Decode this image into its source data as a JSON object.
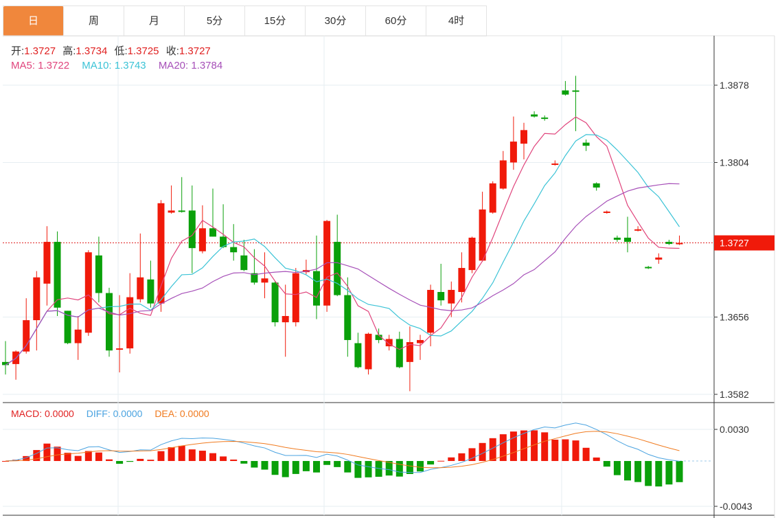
{
  "tabs": [
    "日",
    "周",
    "月",
    "5分",
    "15分",
    "30分",
    "60分",
    "4时"
  ],
  "active_tab": 0,
  "ohlc": {
    "open_label": "开:",
    "open": "1.3727",
    "high_label": "高:",
    "high": "1.3734",
    "low_label": "低:",
    "low": "1.3725",
    "close_label": "收:",
    "close": "1.3727"
  },
  "ma": {
    "ma5": "MA5: 1.3722",
    "ma10": "MA10: 1.3743",
    "ma20": "MA20: 1.3784"
  },
  "macd": {
    "macd": "MACD: 0.0000",
    "diff": "DIFF: 0.0000",
    "dea": "DEA: 0.0000"
  },
  "colors": {
    "up": "#f01a0a",
    "down": "#0aa00a",
    "ma5": "#e0447c",
    "ma10": "#3bc3d6",
    "ma20": "#a64fb8",
    "diff": "#4aa3e0",
    "dea": "#f07a1e",
    "accent": "#f0873c"
  },
  "chart_data": {
    "type": "candlestick",
    "price_axis": {
      "ticks": [
        "1.3878",
        "1.3804",
        "1.3656",
        "1.3582"
      ],
      "range": [
        1.3582,
        1.3878
      ]
    },
    "current_price": "1.3727",
    "macd_axis": {
      "ticks": [
        "0.0030",
        "-0.0043"
      ],
      "range": [
        -0.0043,
        0.003
      ]
    },
    "candles": [
      [
        1.3613,
        1.361,
        1.3633,
        1.3601
      ],
      [
        1.3611,
        1.3623,
        1.3624,
        1.3596
      ],
      [
        1.3623,
        1.3653,
        1.3674,
        1.3621
      ],
      [
        1.3653,
        1.3694,
        1.37,
        1.3624
      ],
      [
        1.3688,
        1.3728,
        1.3743,
        1.3667
      ],
      [
        1.3728,
        1.3665,
        1.3738,
        1.3657
      ],
      [
        1.3662,
        1.3631,
        1.3662,
        1.363
      ],
      [
        1.3631,
        1.3644,
        1.3657,
        1.3615
      ],
      [
        1.3641,
        1.3718,
        1.372,
        1.3638
      ],
      [
        1.3715,
        1.3679,
        1.3733,
        1.367
      ],
      [
        1.3679,
        1.3624,
        1.3684,
        1.3618
      ],
      [
        1.3625,
        1.3626,
        1.3677,
        1.3603
      ],
      [
        1.3626,
        1.3675,
        1.3698,
        1.3621
      ],
      [
        1.3673,
        1.3694,
        1.3736,
        1.367
      ],
      [
        1.3692,
        1.3669,
        1.371,
        1.3665
      ],
      [
        1.3669,
        1.3765,
        1.3768,
        1.3661
      ],
      [
        1.3756,
        1.3758,
        1.3782,
        1.3755
      ],
      [
        1.3758,
        1.3757,
        1.379,
        1.3756
      ],
      [
        1.3758,
        1.3722,
        1.3782,
        1.3698
      ],
      [
        1.3719,
        1.3741,
        1.3763,
        1.3717
      ],
      [
        1.3741,
        1.3733,
        1.3779,
        1.3733
      ],
      [
        1.3733,
        1.3723,
        1.3764,
        1.3722
      ],
      [
        1.3723,
        1.3718,
        1.3745,
        1.371
      ],
      [
        1.3715,
        1.3701,
        1.373,
        1.37
      ],
      [
        1.3698,
        1.3689,
        1.3721,
        1.3687
      ],
      [
        1.3689,
        1.3693,
        1.3718,
        1.3674
      ],
      [
        1.3689,
        1.3651,
        1.369,
        1.3647
      ],
      [
        1.3651,
        1.3657,
        1.3687,
        1.3618
      ],
      [
        1.3651,
        1.3698,
        1.3703,
        1.3647
      ],
      [
        1.3699,
        1.3701,
        1.3711,
        1.3697
      ],
      [
        1.37,
        1.3667,
        1.3734,
        1.3654
      ],
      [
        1.3667,
        1.3748,
        1.3749,
        1.3661
      ],
      [
        1.3728,
        1.3677,
        1.3754,
        1.3676
      ],
      [
        1.3677,
        1.3634,
        1.3694,
        1.3618
      ],
      [
        1.3631,
        1.3608,
        1.3641,
        1.3607
      ],
      [
        1.3606,
        1.364,
        1.3641,
        1.3601
      ],
      [
        1.3639,
        1.3634,
        1.3645,
        1.3631
      ],
      [
        1.3628,
        1.3635,
        1.3639,
        1.3624
      ],
      [
        1.3635,
        1.3608,
        1.3642,
        1.3607
      ],
      [
        1.3613,
        1.3632,
        1.3647,
        1.3585
      ],
      [
        1.3631,
        1.3634,
        1.3639,
        1.3615
      ],
      [
        1.3641,
        1.3682,
        1.3687,
        1.3628
      ],
      [
        1.368,
        1.3672,
        1.3707,
        1.3667
      ],
      [
        1.3669,
        1.3682,
        1.369,
        1.3656
      ],
      [
        1.368,
        1.3703,
        1.3718,
        1.367
      ],
      [
        1.3701,
        1.3732,
        1.3733,
        1.3698
      ],
      [
        1.371,
        1.3759,
        1.3776,
        1.3709
      ],
      [
        1.3756,
        1.3784,
        1.3786,
        1.3755
      ],
      [
        1.3779,
        1.3806,
        1.3815,
        1.3778
      ],
      [
        1.3804,
        1.3824,
        1.3848,
        1.3797
      ],
      [
        1.3822,
        1.3835,
        1.3842,
        1.3807
      ],
      [
        1.385,
        1.3848,
        1.3853,
        1.3847
      ],
      [
        1.3847,
        1.3846,
        1.3849,
        1.3844
      ],
      [
        1.3802,
        1.3803,
        1.3806,
        1.3801
      ],
      [
        1.3873,
        1.3869,
        1.3882,
        1.3868
      ],
      [
        1.3873,
        1.3872,
        1.3887,
        1.3834
      ],
      [
        1.3823,
        1.382,
        1.3826,
        1.3815
      ],
      [
        1.3784,
        1.378,
        1.3785,
        1.3777
      ],
      [
        1.3756,
        1.3757,
        1.3758,
        1.3755
      ],
      [
        1.3732,
        1.373,
        1.3734,
        1.3728
      ],
      [
        1.3732,
        1.3728,
        1.3752,
        1.3718
      ],
      [
        1.3739,
        1.374,
        1.3743,
        1.3738
      ],
      [
        1.3704,
        1.3703,
        1.3705,
        1.3702
      ],
      [
        1.3711,
        1.3713,
        1.3717,
        1.3707
      ],
      [
        1.3728,
        1.3726,
        1.373,
        1.3725
      ],
      [
        1.3727,
        1.3727,
        1.3734,
        1.3725
      ]
    ]
  }
}
